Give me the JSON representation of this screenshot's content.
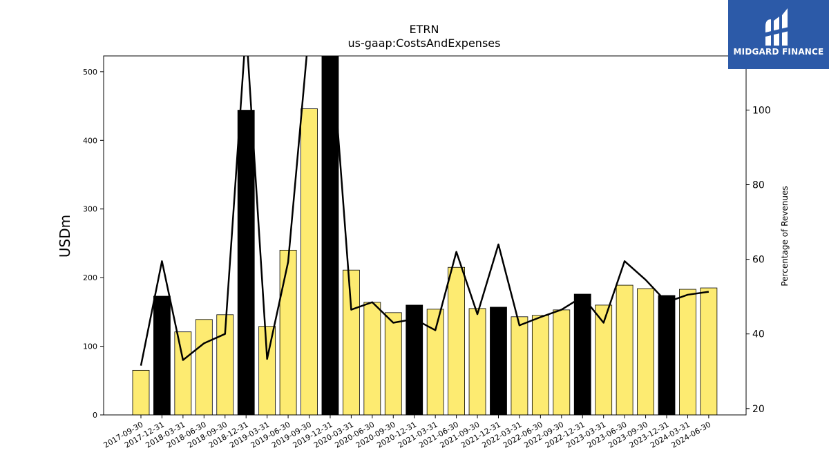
{
  "chart_data": {
    "type": "bar",
    "title": "ETRN",
    "subtitle": "us-gaap:CostsAndExpenses",
    "ylabel": "USDm",
    "ylabel_right": "Percentage of Revenues",
    "ylim": [
      0,
      523
    ],
    "ylim_right": [
      18.3,
      114.5
    ],
    "yticks": [
      0,
      100,
      200,
      300,
      400,
      500
    ],
    "yticks_right": [
      20,
      40,
      60,
      80,
      100
    ],
    "categories": [
      "2017-09-30",
      "2017-12-31",
      "2018-03-31",
      "2018-06-30",
      "2018-09-30",
      "2018-12-31",
      "2019-03-31",
      "2019-06-30",
      "2019-09-30",
      "2019-12-31",
      "2020-03-31",
      "2020-06-30",
      "2020-09-30",
      "2020-12-31",
      "2021-03-31",
      "2021-06-30",
      "2021-09-30",
      "2021-12-31",
      "2022-03-31",
      "2022-06-30",
      "2022-09-30",
      "2022-12-31",
      "2023-03-31",
      "2023-06-30",
      "2023-09-30",
      "2023-12-31",
      "2024-03-31",
      "2024-06-30"
    ],
    "series": [
      {
        "name": "",
        "axis": "left",
        "kind": "bar",
        "values": [
          65,
          173,
          121,
          139,
          146,
          444,
          129,
          240,
          446,
          530,
          211,
          164,
          149,
          160,
          154,
          215,
          155,
          157,
          143,
          145,
          153,
          176,
          160,
          189,
          184,
          174,
          183,
          185
        ],
        "highlight": [
          false,
          true,
          false,
          false,
          false,
          true,
          false,
          false,
          false,
          true,
          false,
          false,
          false,
          true,
          false,
          false,
          false,
          true,
          false,
          false,
          false,
          true,
          false,
          false,
          false,
          true,
          false,
          false
        ]
      },
      {
        "name": "",
        "axis": "right",
        "kind": "line",
        "values": [
          31.5,
          59.5,
          33.0,
          37.5,
          40.0,
          122.0,
          33.3,
          59.3,
          122.0,
          122.0,
          46.5,
          48.5,
          43.0,
          44.0,
          41.0,
          62.0,
          45.3,
          64.0,
          42.3,
          44.5,
          46.5,
          50.0,
          43.0,
          59.5,
          54.5,
          48.5,
          50.5,
          51.3
        ]
      }
    ],
    "colors": {
      "bar": "#fdeb71",
      "bar_highlight": "#000000",
      "line": "#000000"
    },
    "grid": false,
    "legend": "none"
  },
  "logo": {
    "text": "MIDGARD FINANCE",
    "icon": "midgard-logo-icon",
    "background": "#2c5aa8"
  }
}
